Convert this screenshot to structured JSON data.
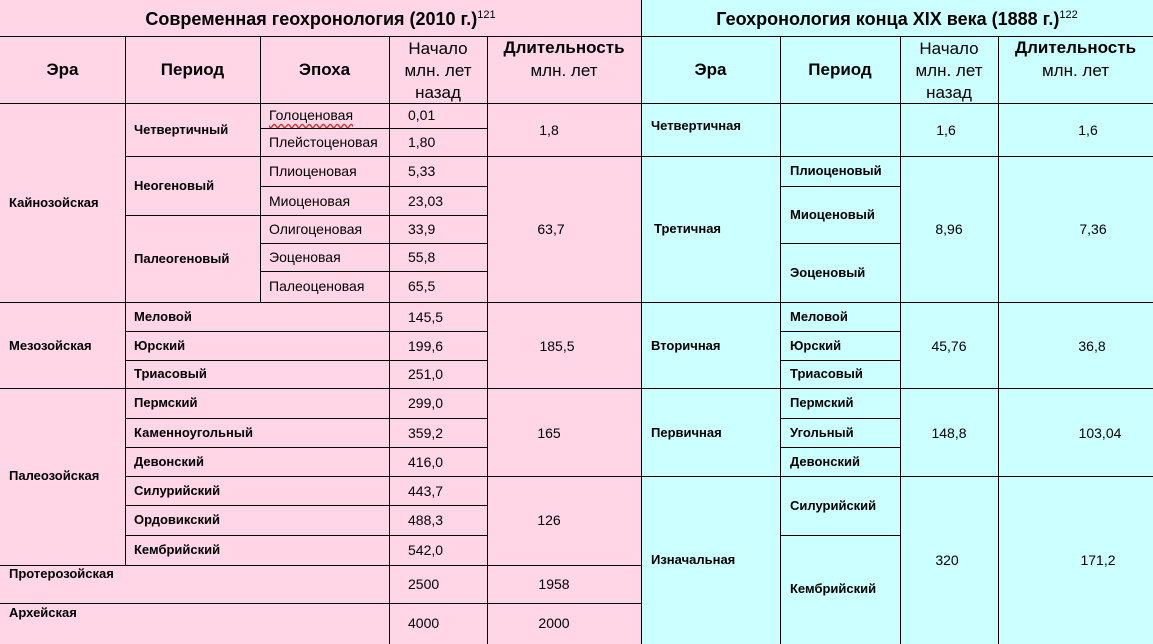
{
  "modern": {
    "title": "Современная геохронология (2010 г.)",
    "title_ref": "121",
    "headers": {
      "era": "Эра",
      "period": "Период",
      "epoch": "Эпоха",
      "start": "Начало\nмлн. лет\nназад",
      "duration_title": "Длительность",
      "duration_unit": "млн. лет"
    },
    "eras": [
      "Кайнозойская",
      "Мезозойская",
      "Палеозойская",
      "Протерозойская",
      "Архейская"
    ],
    "periods": [
      "Четвертичный",
      "Неогеновый",
      "Палеогеновый",
      "Меловой",
      "Юрский",
      "Триасовый",
      "Пермский",
      "Каменноугольный",
      "Девонский",
      "Силурийский",
      "Ордовикский",
      "Кембрийский"
    ],
    "epochs": [
      "Голоценовая",
      "Плейстоценовая",
      "Плиоценовая",
      "Миоценовая",
      "Олигоценовая",
      "Эоценовая",
      "Палеоценовая"
    ],
    "starts": [
      "0,01",
      "1,80",
      "5,33",
      "23,03",
      "33,9",
      "55,8",
      "65,5",
      "145,5",
      "199,6",
      "251,0",
      "299,0",
      "359,2",
      "416,0",
      "443,7",
      "488,3",
      "542,0",
      "2500",
      "4000"
    ],
    "durations": [
      "1,8",
      "63,7",
      "185,5",
      "165",
      "126",
      "1958",
      "2000"
    ]
  },
  "old": {
    "title": "Геохронология конца XIX века (1888 г.)",
    "title_ref": "122",
    "headers": {
      "era": "Эра",
      "period": "Период",
      "start": "Начало\nмлн. лет\nназад",
      "duration_title": "Длительность",
      "duration_unit": "млн. лет"
    },
    "eras": [
      "Четвертичная",
      "Третичная",
      "Вторичная",
      "Первичная",
      "Изначальная"
    ],
    "periods": [
      "Плиоценовый",
      "Миоценовый",
      "Эоценовый",
      "Меловой",
      "Юрский",
      "Триасовый",
      "Пермский",
      "Угольный",
      "Девонский",
      "Силурийский",
      "Кембрийский"
    ],
    "starts": [
      "1,6",
      "8,96",
      "45,76",
      "148,8",
      "320"
    ],
    "durations": [
      "1,6",
      "7,36",
      "36,8",
      "103,04",
      "171,2"
    ]
  },
  "colors": {
    "modern_bg": "#ffd6e6",
    "old_bg": "#ccffff",
    "grid": "#000000",
    "spell_underline": "#cc3333"
  }
}
